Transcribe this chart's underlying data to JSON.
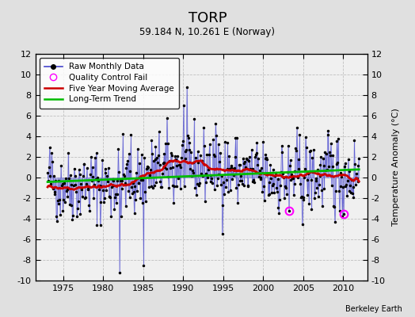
{
  "title": "TORP",
  "subtitle": "59.184 N, 10.261 E (Norway)",
  "ylabel": "Temperature Anomaly (°C)",
  "credit": "Berkeley Earth",
  "xlim": [
    1971.5,
    2013.0
  ],
  "ylim": [
    -10,
    12
  ],
  "yticks": [
    -10,
    -8,
    -6,
    -4,
    -2,
    0,
    2,
    4,
    6,
    8,
    10,
    12
  ],
  "xticks": [
    1975,
    1980,
    1985,
    1990,
    1995,
    2000,
    2005,
    2010
  ],
  "line_color": "#4444cc",
  "fill_color": "#aaaaee",
  "ma_color": "#cc0000",
  "trend_color": "#00bb00",
  "qc_color": "#ff00ff",
  "bg_color": "#e0e0e0",
  "plot_bg": "#f0f0f0",
  "grid_color": "#c0c0c0",
  "start_year": 1973,
  "end_year": 2011,
  "seed": 42
}
